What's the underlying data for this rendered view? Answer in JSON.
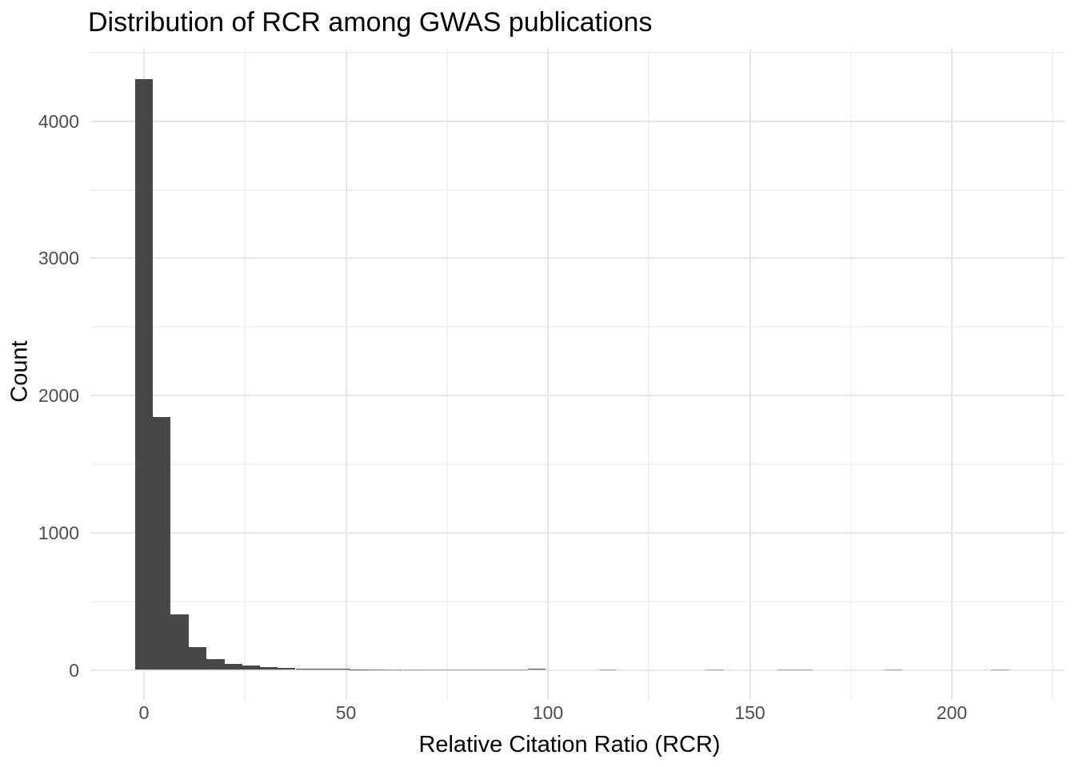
{
  "chart_data": {
    "type": "bar",
    "subtype": "histogram",
    "title": "Distribution of RCR among GWAS publications",
    "xlabel": "Relative Citation Ratio (RCR)",
    "ylabel": "Count",
    "x_ticks": [
      0,
      50,
      100,
      150,
      200
    ],
    "x_minor_ticks": [
      25,
      75,
      125,
      175,
      225
    ],
    "y_ticks": [
      0,
      1000,
      2000,
      3000,
      4000
    ],
    "y_minor_ticks": [
      500,
      1500,
      2500,
      3500,
      4500
    ],
    "xlim": [
      -13.3,
      228.0
    ],
    "ylim": [
      -215,
      4525
    ],
    "bin_width": 4.417,
    "bins": [
      {
        "x": 0,
        "count": 4310
      },
      {
        "x": 4.4,
        "count": 1845
      },
      {
        "x": 8.8,
        "count": 405
      },
      {
        "x": 13.3,
        "count": 168
      },
      {
        "x": 17.7,
        "count": 80
      },
      {
        "x": 22.1,
        "count": 46
      },
      {
        "x": 26.5,
        "count": 32
      },
      {
        "x": 30.9,
        "count": 22
      },
      {
        "x": 35.3,
        "count": 16
      },
      {
        "x": 39.8,
        "count": 11
      },
      {
        "x": 44.2,
        "count": 9
      },
      {
        "x": 48.6,
        "count": 8
      },
      {
        "x": 53.0,
        "count": 5
      },
      {
        "x": 57.4,
        "count": 4
      },
      {
        "x": 61.8,
        "count": 3
      },
      {
        "x": 66.3,
        "count": 3
      },
      {
        "x": 70.7,
        "count": 2
      },
      {
        "x": 75.1,
        "count": 2
      },
      {
        "x": 79.5,
        "count": 1
      },
      {
        "x": 83.9,
        "count": 1
      },
      {
        "x": 88.3,
        "count": 1
      },
      {
        "x": 92.8,
        "count": 2
      },
      {
        "x": 97.2,
        "count": 10
      },
      {
        "x": 114.8,
        "count": 1
      },
      {
        "x": 141.3,
        "count": 1
      },
      {
        "x": 159.0,
        "count": 1
      },
      {
        "x": 163.4,
        "count": 1
      },
      {
        "x": 185.5,
        "count": 1
      },
      {
        "x": 212.0,
        "count": 1
      }
    ],
    "legend": null,
    "grid": "on",
    "colors": {
      "bar_fill": "#474747",
      "grid_major": "#e6e6e6",
      "grid_minor": "#f2f2f2",
      "tick_label_text": "#4d4d4d",
      "title_text": "#000000",
      "background": "#ffffff"
    }
  }
}
